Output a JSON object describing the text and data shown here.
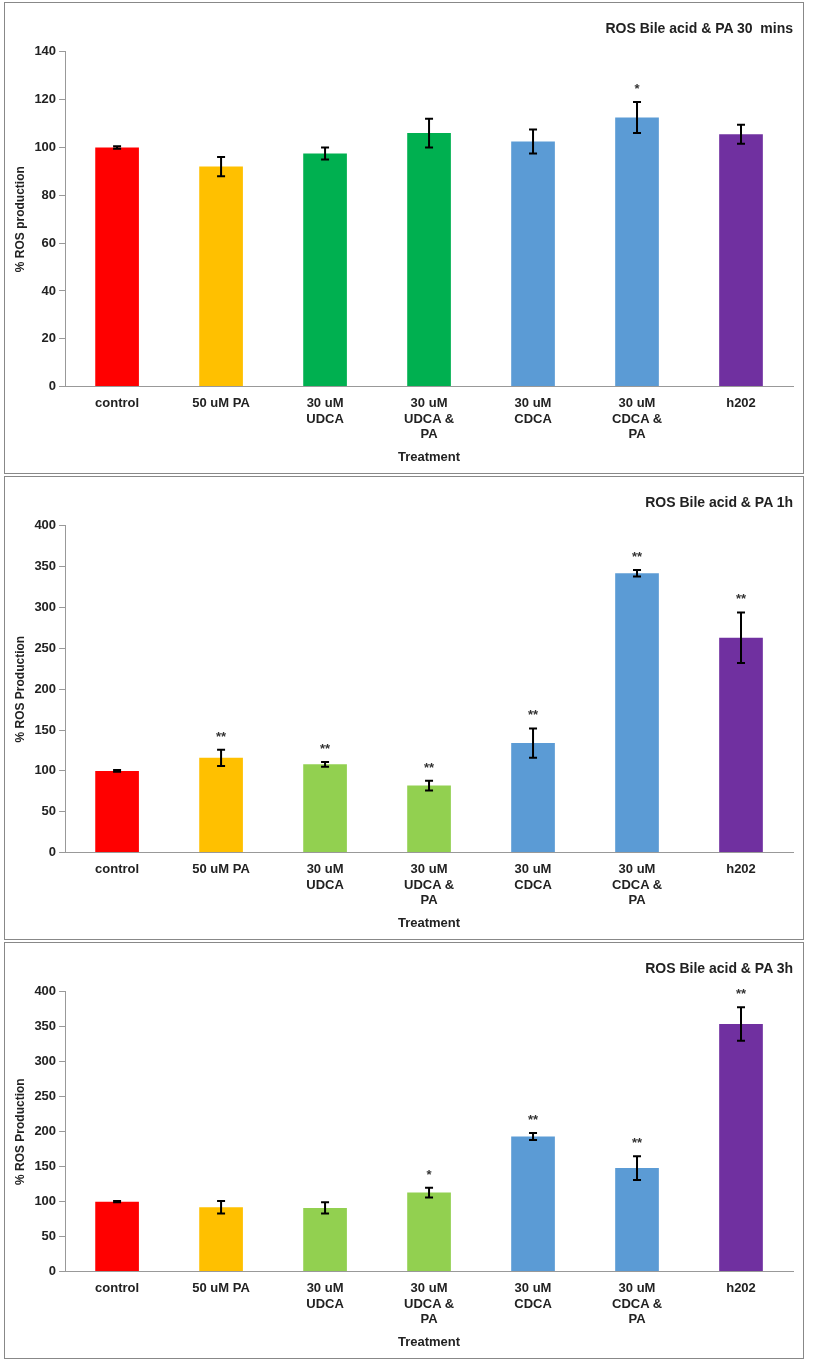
{
  "chart_data": [
    {
      "type": "bar",
      "title": "ROS Bile acid & PA 30  mins",
      "xlabel": "Treatment",
      "ylabel": "% ROS production",
      "categories": [
        "control",
        "50 uM PA",
        "30 uM UDCA",
        "30 uM UDCA & PA",
        "30 uM CDCA",
        "30 uM CDCA & PA",
        "h202"
      ],
      "values": [
        100,
        92,
        97.5,
        106,
        102.5,
        112.5,
        105.5
      ],
      "errors": [
        0.5,
        4,
        2.5,
        6,
        5,
        6.5,
        4
      ],
      "value_labels": [
        null,
        null,
        null,
        null,
        null,
        "*",
        null
      ],
      "colors": [
        "#ff0000",
        "#ffc000",
        "#00b050",
        "#00b050",
        "#5b9bd5",
        "#5b9bd5",
        "#7030a0"
      ],
      "ylim": [
        0,
        140
      ],
      "yticks": [
        0,
        20,
        40,
        60,
        80,
        100,
        120,
        140
      ],
      "grid": false,
      "legend": false
    },
    {
      "type": "bar",
      "title": "ROS Bile acid & PA 1h",
      "xlabel": "Treatment",
      "ylabel": "% ROS Production",
      "categories": [
        "control",
        "50 uM PA",
        "30 uM UDCA",
        "30 uM UDCA & PA",
        "30 uM CDCA",
        "30 uM CDCA & PA",
        "h202"
      ],
      "values": [
        100,
        116,
        108,
        82,
        134,
        342,
        263
      ],
      "errors": [
        1,
        10,
        3,
        6,
        18,
        4,
        31
      ],
      "value_labels": [
        null,
        "**",
        "**",
        "**",
        "**",
        "**",
        "**"
      ],
      "colors": [
        "#ff0000",
        "#ffc000",
        "#92d050",
        "#92d050",
        "#5b9bd5",
        "#5b9bd5",
        "#7030a0"
      ],
      "ylim": [
        0,
        400
      ],
      "yticks": [
        0,
        50,
        100,
        150,
        200,
        250,
        300,
        350,
        400
      ],
      "grid": false,
      "legend": false
    },
    {
      "type": "bar",
      "title": "ROS Bile acid & PA 3h",
      "xlabel": "Treatment",
      "ylabel": "% ROS Production",
      "categories": [
        "control",
        "50 uM PA",
        "30 uM UDCA",
        "30 uM UDCA & PA",
        "30 uM CDCA",
        "30 uM CDCA & PA",
        "h202"
      ],
      "values": [
        100,
        92,
        91,
        113,
        193,
        148,
        354
      ],
      "errors": [
        1,
        9,
        8,
        7,
        5,
        17,
        24
      ],
      "value_labels": [
        null,
        null,
        null,
        "*",
        "**",
        "**",
        "**"
      ],
      "colors": [
        "#ff0000",
        "#ffc000",
        "#92d050",
        "#92d050",
        "#5b9bd5",
        "#5b9bd5",
        "#7030a0"
      ],
      "ylim": [
        0,
        400
      ],
      "yticks": [
        0,
        50,
        100,
        150,
        200,
        250,
        300,
        350,
        400
      ],
      "grid": false,
      "legend": false
    }
  ]
}
